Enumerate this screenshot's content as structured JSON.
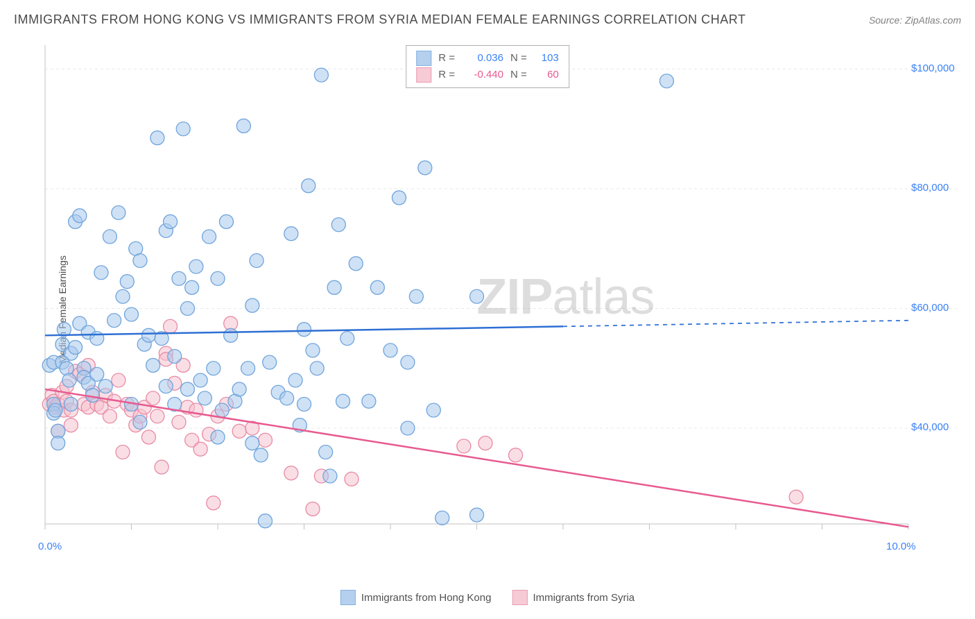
{
  "title": "IMMIGRANTS FROM HONG KONG VS IMMIGRANTS FROM SYRIA MEDIAN FEMALE EARNINGS CORRELATION CHART",
  "source": "Source: ZipAtlas.com",
  "y_axis_label": "Median Female Earnings",
  "watermark_bold": "ZIP",
  "watermark_rest": "atlas",
  "chart": {
    "type": "scatter",
    "background_color": "#ffffff",
    "grid_color": "#e8e8e8",
    "axis_color": "#c0c0c0",
    "tick_label_color": "#3b82f6",
    "x_domain": [
      0,
      10
    ],
    "y_domain": [
      24000,
      104000
    ],
    "x_ticks": [
      0.0,
      10.0
    ],
    "x_tick_labels": [
      "0.0%",
      "10.0%"
    ],
    "y_ticks": [
      40000,
      60000,
      80000,
      100000
    ],
    "y_tick_labels": [
      "$40,000",
      "$60,000",
      "$80,000",
      "$100,000"
    ],
    "x_minor_ticks": [
      0,
      1,
      2,
      3,
      4,
      5,
      6,
      7,
      8,
      9,
      10
    ],
    "series": [
      {
        "name": "Immigrants from Hong Kong",
        "color_fill": "#a8c8ec",
        "color_stroke": "#6fa4db",
        "fill_opacity": 0.55,
        "marker_r": 10,
        "R": "0.036",
        "N": "103",
        "r_color": "#3b82f6",
        "trend": {
          "y_start": 55500,
          "y_end": 58000,
          "solid_until_x": 6.0,
          "color": "#2d6fd4",
          "width": 2.5
        },
        "points": [
          [
            0.05,
            50500
          ],
          [
            0.1,
            51000
          ],
          [
            0.1,
            44000
          ],
          [
            0.1,
            42500
          ],
          [
            0.12,
            43000
          ],
          [
            0.15,
            39500
          ],
          [
            0.15,
            37500
          ],
          [
            0.2,
            51000
          ],
          [
            0.2,
            54000
          ],
          [
            0.22,
            56500
          ],
          [
            0.25,
            50000
          ],
          [
            0.28,
            48000
          ],
          [
            0.3,
            44000
          ],
          [
            0.3,
            52500
          ],
          [
            0.35,
            53500
          ],
          [
            0.35,
            74500
          ],
          [
            0.4,
            75500
          ],
          [
            0.4,
            57500
          ],
          [
            0.45,
            50000
          ],
          [
            0.45,
            48500
          ],
          [
            0.5,
            47500
          ],
          [
            0.5,
            56000
          ],
          [
            0.55,
            45500
          ],
          [
            0.6,
            55000
          ],
          [
            0.6,
            49000
          ],
          [
            0.65,
            66000
          ],
          [
            0.7,
            47000
          ],
          [
            0.75,
            72000
          ],
          [
            0.8,
            58000
          ],
          [
            0.85,
            76000
          ],
          [
            0.9,
            62000
          ],
          [
            0.95,
            64500
          ],
          [
            1.0,
            59000
          ],
          [
            1.0,
            44000
          ],
          [
            1.05,
            70000
          ],
          [
            1.1,
            68000
          ],
          [
            1.1,
            41000
          ],
          [
            1.15,
            54000
          ],
          [
            1.2,
            55500
          ],
          [
            1.25,
            50500
          ],
          [
            1.3,
            88500
          ],
          [
            1.35,
            55000
          ],
          [
            1.4,
            47000
          ],
          [
            1.4,
            73000
          ],
          [
            1.45,
            74500
          ],
          [
            1.5,
            44000
          ],
          [
            1.5,
            52000
          ],
          [
            1.55,
            65000
          ],
          [
            1.6,
            90000
          ],
          [
            1.65,
            46500
          ],
          [
            1.65,
            60000
          ],
          [
            1.7,
            63500
          ],
          [
            1.75,
            67000
          ],
          [
            1.8,
            48000
          ],
          [
            1.85,
            45000
          ],
          [
            1.9,
            72000
          ],
          [
            1.95,
            50000
          ],
          [
            2.0,
            65000
          ],
          [
            2.0,
            38500
          ],
          [
            2.05,
            43000
          ],
          [
            2.1,
            74500
          ],
          [
            2.15,
            55500
          ],
          [
            2.2,
            44500
          ],
          [
            2.25,
            46500
          ],
          [
            2.3,
            90500
          ],
          [
            2.35,
            50000
          ],
          [
            2.4,
            60500
          ],
          [
            2.4,
            37500
          ],
          [
            2.45,
            68000
          ],
          [
            2.5,
            35500
          ],
          [
            2.55,
            24500
          ],
          [
            2.6,
            51000
          ],
          [
            2.7,
            46000
          ],
          [
            2.8,
            45000
          ],
          [
            2.85,
            72500
          ],
          [
            2.9,
            48000
          ],
          [
            2.95,
            40500
          ],
          [
            3.0,
            56500
          ],
          [
            3.0,
            44000
          ],
          [
            3.05,
            80500
          ],
          [
            3.1,
            53000
          ],
          [
            3.15,
            50000
          ],
          [
            3.2,
            99000
          ],
          [
            3.25,
            36000
          ],
          [
            3.3,
            32000
          ],
          [
            3.35,
            63500
          ],
          [
            3.4,
            74000
          ],
          [
            3.5,
            55000
          ],
          [
            3.45,
            44500
          ],
          [
            3.6,
            67500
          ],
          [
            3.75,
            44500
          ],
          [
            3.85,
            63500
          ],
          [
            4.0,
            53000
          ],
          [
            4.1,
            78500
          ],
          [
            4.2,
            51000
          ],
          [
            4.2,
            40000
          ],
          [
            4.3,
            62000
          ],
          [
            4.4,
            83500
          ],
          [
            4.5,
            43000
          ],
          [
            4.6,
            25000
          ],
          [
            5.0,
            25500
          ],
          [
            5.0,
            62000
          ],
          [
            7.2,
            98000
          ]
        ]
      },
      {
        "name": "Immigrants from Syria",
        "color_fill": "#f5c3cf",
        "color_stroke": "#e88ba4",
        "fill_opacity": 0.55,
        "marker_r": 10,
        "R": "-0.440",
        "N": "60",
        "r_color": "#e75a8f",
        "trend": {
          "y_start": 46500,
          "y_end": 23500,
          "solid_until_x": 10.0,
          "color": "#e75a8f",
          "width": 2.5
        },
        "points": [
          [
            0.05,
            44000
          ],
          [
            0.08,
            45500
          ],
          [
            0.1,
            44500
          ],
          [
            0.12,
            43500
          ],
          [
            0.15,
            44000
          ],
          [
            0.15,
            39500
          ],
          [
            0.2,
            46000
          ],
          [
            0.22,
            43000
          ],
          [
            0.25,
            44500
          ],
          [
            0.25,
            47000
          ],
          [
            0.3,
            43000
          ],
          [
            0.3,
            40500
          ],
          [
            0.35,
            49500
          ],
          [
            0.4,
            49000
          ],
          [
            0.45,
            44000
          ],
          [
            0.5,
            50500
          ],
          [
            0.5,
            43500
          ],
          [
            0.55,
            46000
          ],
          [
            0.6,
            44000
          ],
          [
            0.65,
            43500
          ],
          [
            0.7,
            45500
          ],
          [
            0.75,
            42000
          ],
          [
            0.8,
            44500
          ],
          [
            0.85,
            48000
          ],
          [
            0.9,
            36000
          ],
          [
            0.95,
            44000
          ],
          [
            1.0,
            43000
          ],
          [
            1.05,
            40500
          ],
          [
            1.1,
            42000
          ],
          [
            1.15,
            43500
          ],
          [
            1.2,
            38500
          ],
          [
            1.25,
            45000
          ],
          [
            1.3,
            42000
          ],
          [
            1.35,
            33500
          ],
          [
            1.4,
            52500
          ],
          [
            1.4,
            51500
          ],
          [
            1.45,
            57000
          ],
          [
            1.5,
            47500
          ],
          [
            1.55,
            41000
          ],
          [
            1.6,
            50500
          ],
          [
            1.65,
            43500
          ],
          [
            1.7,
            38000
          ],
          [
            1.75,
            43000
          ],
          [
            1.8,
            36500
          ],
          [
            1.9,
            39000
          ],
          [
            1.95,
            27500
          ],
          [
            2.0,
            42000
          ],
          [
            2.1,
            44000
          ],
          [
            2.15,
            57500
          ],
          [
            2.25,
            39500
          ],
          [
            2.4,
            40000
          ],
          [
            2.55,
            38000
          ],
          [
            2.85,
            32500
          ],
          [
            3.1,
            26500
          ],
          [
            3.2,
            32000
          ],
          [
            3.55,
            31500
          ],
          [
            4.85,
            37000
          ],
          [
            5.1,
            37500
          ],
          [
            5.45,
            35500
          ],
          [
            8.7,
            28500
          ]
        ]
      }
    ]
  },
  "legend_labels": {
    "r_prefix": "R =",
    "n_prefix": "N ="
  }
}
